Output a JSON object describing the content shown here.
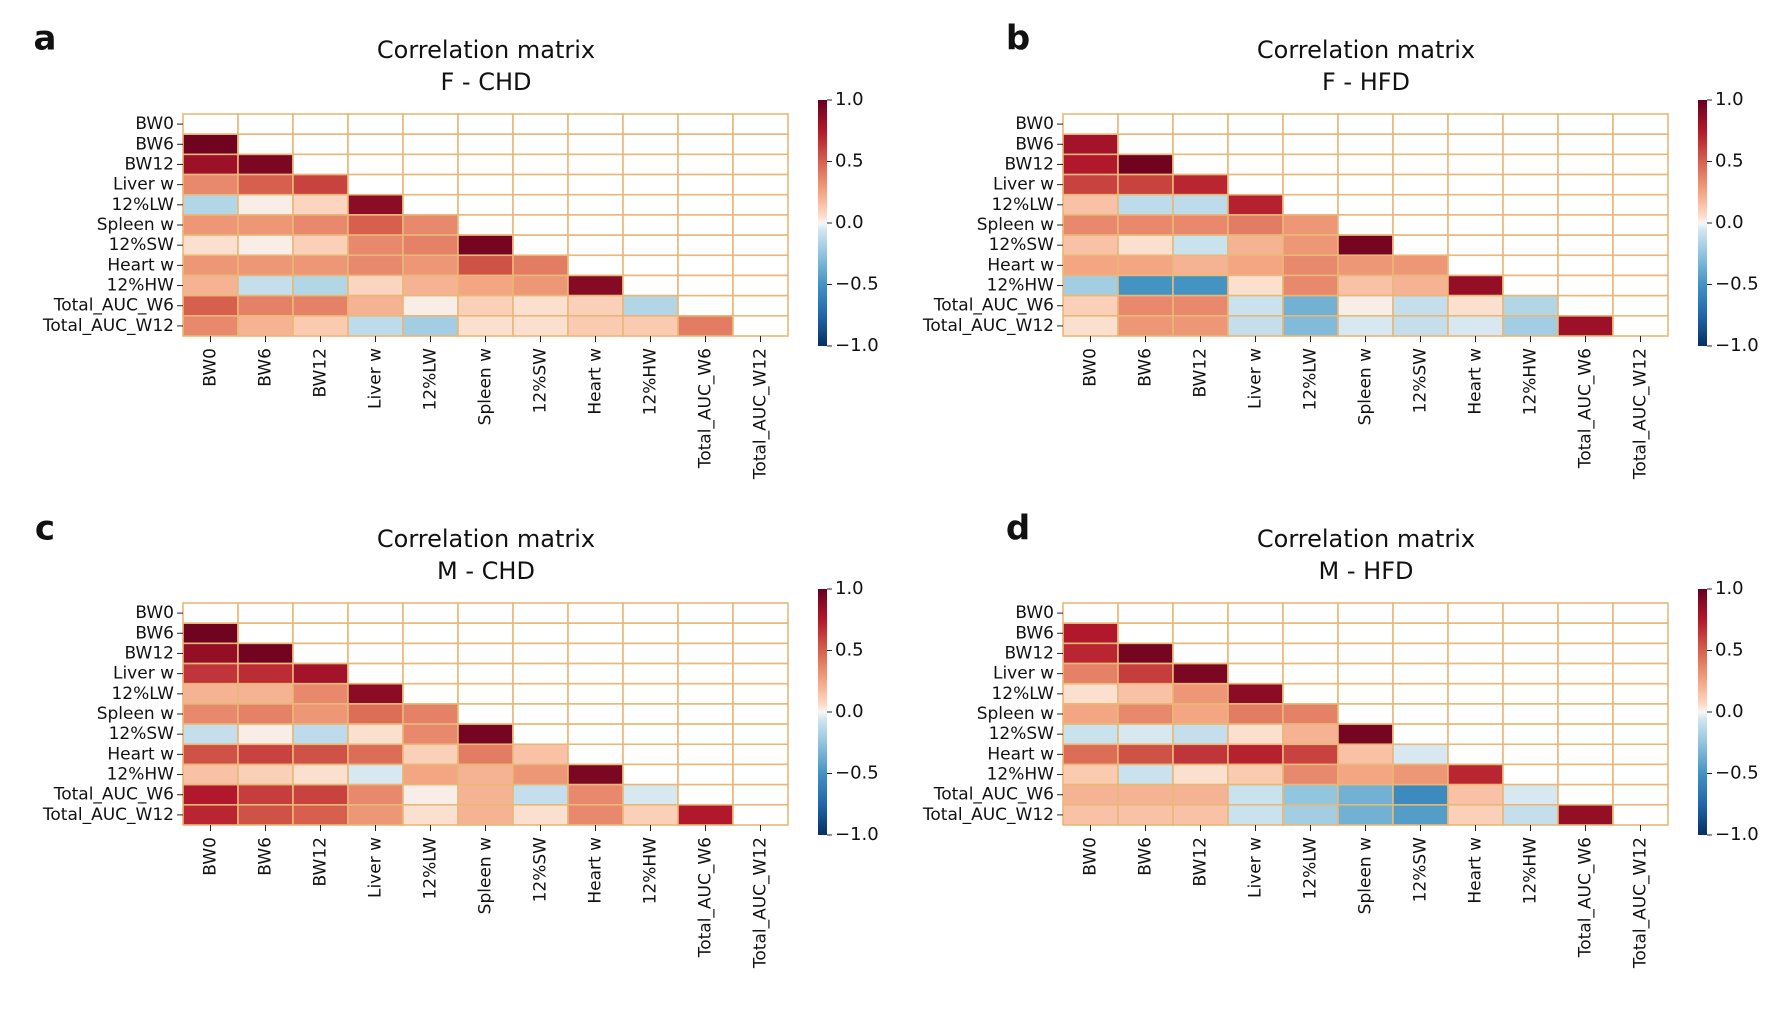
{
  "figure": {
    "panels": [
      {
        "letter": "a",
        "title": "Correlation matrix",
        "subtitle": "F - CHD"
      },
      {
        "letter": "b",
        "title": "Correlation matrix",
        "subtitle": "F - HFD"
      },
      {
        "letter": "c",
        "title": "Correlation matrix",
        "subtitle": "M - CHD"
      },
      {
        "letter": "d",
        "title": "Correlation matrix",
        "subtitle": "M - HFD"
      }
    ],
    "colorbar_ticks": [
      "1.0",
      "0.5",
      "0.0",
      "−0.5",
      "−1.0"
    ],
    "colors": {
      "grid": "#e8b878",
      "positive": "#67001f",
      "negative": "#053061",
      "neutral": "#f7f7f7"
    }
  },
  "chart_data": [
    {
      "type": "heatmap",
      "title": "Correlation matrix",
      "subtitle": "F - CHD",
      "variables": [
        "BW0",
        "BW6",
        "BW12",
        "Liver w",
        "12%LW",
        "Spleen w",
        "12%SW",
        "Heart w",
        "12%HW",
        "Total_AUC_W6",
        "Total_AUC_W12"
      ],
      "colorbar_range": [
        -1.0,
        1.0
      ],
      "lower_triangle": [
        [],
        [
          0.97
        ],
        [
          0.82,
          0.93
        ],
        [
          0.35,
          0.5,
          0.6
        ],
        [
          -0.15,
          0.02,
          0.08,
          0.88
        ],
        [
          0.3,
          0.3,
          0.35,
          0.5,
          0.35
        ],
        [
          0.05,
          0.02,
          0.1,
          0.35,
          0.38,
          0.95
        ],
        [
          0.3,
          0.3,
          0.3,
          0.35,
          0.3,
          0.55,
          0.4
        ],
        [
          0.2,
          -0.1,
          -0.15,
          0.08,
          0.2,
          0.25,
          0.3,
          0.9
        ],
        [
          0.5,
          0.38,
          0.38,
          0.2,
          0.02,
          0.1,
          0.05,
          0.1,
          -0.15
        ],
        [
          0.35,
          0.2,
          0.12,
          -0.12,
          -0.2,
          0.05,
          0.05,
          0.12,
          0.12,
          0.4
        ]
      ]
    },
    {
      "type": "heatmap",
      "title": "Correlation matrix",
      "subtitle": "F - HFD",
      "variables": [
        "BW0",
        "BW6",
        "BW12",
        "Liver w",
        "12%LW",
        "Spleen w",
        "12%SW",
        "Heart w",
        "12%HW",
        "Total_AUC_W6",
        "Total_AUC_W12"
      ],
      "colorbar_range": [
        -1.0,
        1.0
      ],
      "lower_triangle": [
        [],
        [
          0.8
        ],
        [
          0.75,
          0.97
        ],
        [
          0.6,
          0.6,
          0.7
        ],
        [
          0.15,
          -0.12,
          -0.12,
          0.72
        ],
        [
          0.35,
          0.35,
          0.35,
          0.4,
          0.3
        ],
        [
          0.15,
          0.05,
          -0.08,
          0.2,
          0.3,
          0.95
        ],
        [
          0.25,
          0.25,
          0.2,
          0.25,
          0.35,
          0.3,
          0.3
        ],
        [
          -0.2,
          -0.5,
          -0.5,
          0.05,
          0.35,
          0.15,
          0.2,
          0.85
        ],
        [
          0.1,
          0.35,
          0.35,
          -0.08,
          -0.35,
          0.02,
          -0.1,
          0.05,
          -0.15
        ],
        [
          0.05,
          0.3,
          0.3,
          -0.1,
          -0.3,
          -0.05,
          -0.1,
          -0.05,
          -0.2,
          0.82
        ]
      ]
    },
    {
      "type": "heatmap",
      "title": "Correlation matrix",
      "subtitle": "M - CHD",
      "variables": [
        "BW0",
        "BW6",
        "BW12",
        "Liver w",
        "12%LW",
        "Spleen w",
        "12%SW",
        "Heart w",
        "12%HW",
        "Total_AUC_W6",
        "Total_AUC_W12"
      ],
      "colorbar_range": [
        -1.0,
        1.0
      ],
      "lower_triangle": [
        [],
        [
          0.97
        ],
        [
          0.85,
          0.96
        ],
        [
          0.65,
          0.68,
          0.8
        ],
        [
          0.2,
          0.2,
          0.35,
          0.88
        ],
        [
          0.35,
          0.38,
          0.3,
          0.45,
          0.38
        ],
        [
          -0.1,
          0.02,
          -0.12,
          0.05,
          0.35,
          0.95
        ],
        [
          0.55,
          0.6,
          0.55,
          0.45,
          0.1,
          0.4,
          0.15
        ],
        [
          0.15,
          0.1,
          0.05,
          -0.05,
          0.25,
          0.2,
          0.3,
          0.93
        ],
        [
          0.75,
          0.62,
          0.6,
          0.35,
          0.02,
          0.2,
          -0.1,
          0.35,
          -0.05
        ],
        [
          0.7,
          0.55,
          0.5,
          0.3,
          0.05,
          0.2,
          0.05,
          0.35,
          0.1,
          0.75
        ]
      ]
    },
    {
      "type": "heatmap",
      "title": "Correlation matrix",
      "subtitle": "M - HFD",
      "variables": [
        "BW0",
        "BW6",
        "BW12",
        "Liver w",
        "12%LW",
        "Spleen w",
        "12%SW",
        "Heart w",
        "12%HW",
        "Total_AUC_W6",
        "Total_AUC_W12"
      ],
      "colorbar_range": [
        -1.0,
        1.0
      ],
      "lower_triangle": [
        [],
        [
          0.75
        ],
        [
          0.7,
          0.95
        ],
        [
          0.38,
          0.62,
          0.93
        ],
        [
          0.05,
          0.15,
          0.3,
          0.88
        ],
        [
          0.25,
          0.35,
          0.25,
          0.4,
          0.38
        ],
        [
          -0.08,
          -0.05,
          -0.1,
          0.05,
          0.2,
          0.95
        ],
        [
          0.45,
          0.55,
          0.65,
          0.72,
          0.6,
          0.15,
          -0.05
        ],
        [
          0.12,
          -0.08,
          0.05,
          0.12,
          0.35,
          0.25,
          0.3,
          0.7
        ],
        [
          0.2,
          0.2,
          0.2,
          -0.08,
          -0.25,
          -0.35,
          -0.55,
          0.15,
          -0.05
        ],
        [
          0.15,
          0.15,
          0.15,
          -0.08,
          -0.2,
          -0.35,
          -0.45,
          0.1,
          -0.1,
          0.85
        ]
      ]
    }
  ]
}
